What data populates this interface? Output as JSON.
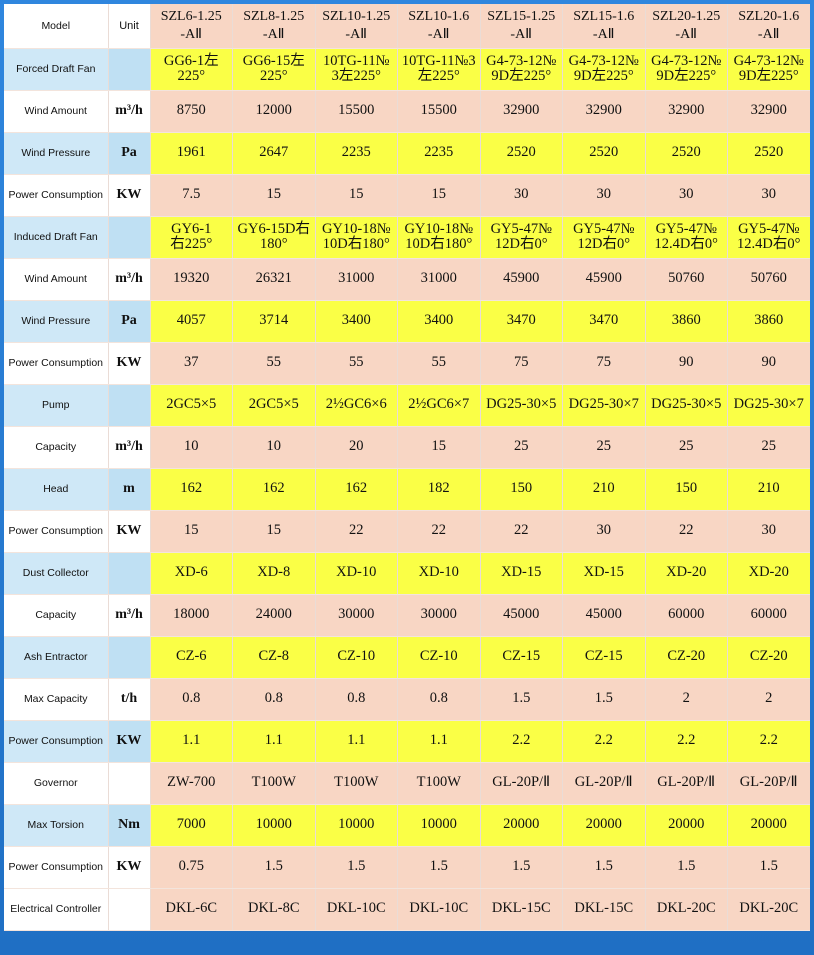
{
  "table": {
    "header": {
      "model_label": "Model",
      "unit_label": "Unit",
      "models": [
        "SZL6-1.25\n-AⅡ",
        "SZL8-1.25\n-AⅡ",
        "SZL10-1.25\n-AⅡ",
        "SZL10-1.6\n-AⅡ",
        "SZL15-1.25\n-AⅡ",
        "SZL15-1.6\n-AⅡ",
        "SZL20-1.25\n-AⅡ",
        "SZL20-1.6\n-AⅡ"
      ]
    },
    "rows": [
      {
        "label": "Forced Draft Fan",
        "unit": "",
        "style": "blue",
        "values": [
          "GG6-1左\n225°",
          "GG6-15左\n225°",
          "10TG-11№\n3左225°",
          "10TG-11№3\n左225°",
          "G4-73-12№\n9D左225°",
          "G4-73-12№\n9D左225°",
          "G4-73-12№\n9D左225°",
          "G4-73-12№\n9D左225°"
        ]
      },
      {
        "label": "Wind Amount",
        "unit": "m³/h",
        "style": "white",
        "values": [
          "8750",
          "12000",
          "15500",
          "15500",
          "32900",
          "32900",
          "32900",
          "32900"
        ]
      },
      {
        "label": "Wind Pressure",
        "unit": "Pa",
        "style": "blue",
        "values": [
          "1961",
          "2647",
          "2235",
          "2235",
          "2520",
          "2520",
          "2520",
          "2520"
        ]
      },
      {
        "label": "Power Consumption",
        "unit": "KW",
        "style": "white",
        "values": [
          "7.5",
          "15",
          "15",
          "15",
          "30",
          "30",
          "30",
          "30"
        ]
      },
      {
        "label": "Induced Draft Fan",
        "unit": "",
        "style": "blue",
        "values": [
          "GY6-1\n右225°",
          "GY6-15D右\n180°",
          "GY10-18№\n10D右180°",
          "GY10-18№\n10D右180°",
          "GY5-47№\n12D右0°",
          "GY5-47№\n12D右0°",
          "GY5-47№\n12.4D右0°",
          "GY5-47№\n12.4D右0°"
        ]
      },
      {
        "label": "Wind Amount",
        "unit": "m³/h",
        "style": "white",
        "values": [
          "19320",
          "26321",
          "31000",
          "31000",
          "45900",
          "45900",
          "50760",
          "50760"
        ]
      },
      {
        "label": "Wind Pressure",
        "unit": "Pa",
        "style": "blue",
        "values": [
          "4057",
          "3714",
          "3400",
          "3400",
          "3470",
          "3470",
          "3860",
          "3860"
        ]
      },
      {
        "label": "Power Consumption",
        "unit": "KW",
        "style": "white",
        "values": [
          "37",
          "55",
          "55",
          "55",
          "75",
          "75",
          "90",
          "90"
        ]
      },
      {
        "label": "Pump",
        "unit": "",
        "style": "blue",
        "values": [
          "2GC5×5",
          "2GC5×5",
          "2½GC6×6",
          "2½GC6×7",
          "DG25-30×5",
          "DG25-30×7",
          "DG25-30×5",
          "DG25-30×7"
        ]
      },
      {
        "label": "Capacity",
        "unit": "m³/h",
        "style": "white",
        "values": [
          "10",
          "10",
          "20",
          "15",
          "25",
          "25",
          "25",
          "25"
        ]
      },
      {
        "label": "Head",
        "unit": "m",
        "style": "blue",
        "values": [
          "162",
          "162",
          "162",
          "182",
          "150",
          "210",
          "150",
          "210"
        ]
      },
      {
        "label": "Power Consumption",
        "unit": "KW",
        "style": "white",
        "values": [
          "15",
          "15",
          "22",
          "22",
          "22",
          "30",
          "22",
          "30"
        ]
      },
      {
        "label": "Dust Collector",
        "unit": "",
        "style": "blue",
        "values": [
          "XD-6",
          "XD-8",
          "XD-10",
          "XD-10",
          "XD-15",
          "XD-15",
          "XD-20",
          "XD-20"
        ]
      },
      {
        "label": "Capacity",
        "unit": "m³/h",
        "style": "white",
        "values": [
          "18000",
          "24000",
          "30000",
          "30000",
          "45000",
          "45000",
          "60000",
          "60000"
        ]
      },
      {
        "label": "Ash Entractor",
        "unit": "",
        "style": "blue",
        "values": [
          "CZ-6",
          "CZ-8",
          "CZ-10",
          "CZ-10",
          "CZ-15",
          "CZ-15",
          "CZ-20",
          "CZ-20"
        ]
      },
      {
        "label": "Max Capacity",
        "unit": "t/h",
        "style": "white",
        "values": [
          "0.8",
          "0.8",
          "0.8",
          "0.8",
          "1.5",
          "1.5",
          "2",
          "2"
        ]
      },
      {
        "label": "Power Consumption",
        "unit": "KW",
        "style": "blue",
        "values": [
          "1.1",
          "1.1",
          "1.1",
          "1.1",
          "2.2",
          "2.2",
          "2.2",
          "2.2"
        ]
      },
      {
        "label": "Governor",
        "unit": "",
        "style": "white",
        "values": [
          "ZW-700",
          "T100W",
          "T100W",
          "T100W",
          "GL-20P/Ⅱ",
          "GL-20P/Ⅱ",
          "GL-20P/Ⅱ",
          "GL-20P/Ⅱ"
        ]
      },
      {
        "label": "Max Torsion",
        "unit": "Nm",
        "style": "blue",
        "values": [
          "7000",
          "10000",
          "10000",
          "10000",
          "20000",
          "20000",
          "20000",
          "20000"
        ]
      },
      {
        "label": "Power Consumption",
        "unit": "KW",
        "style": "white",
        "values": [
          "0.75",
          "1.5",
          "1.5",
          "1.5",
          "1.5",
          "1.5",
          "1.5",
          "1.5"
        ]
      },
      {
        "label": "Electrical Controller",
        "unit": "",
        "style": "white",
        "values": [
          "DKL-6C",
          "DKL-8C",
          "DKL-10C",
          "DKL-10C",
          "DKL-15C",
          "DKL-15C",
          "DKL-20C",
          "DKL-20C"
        ]
      }
    ]
  }
}
